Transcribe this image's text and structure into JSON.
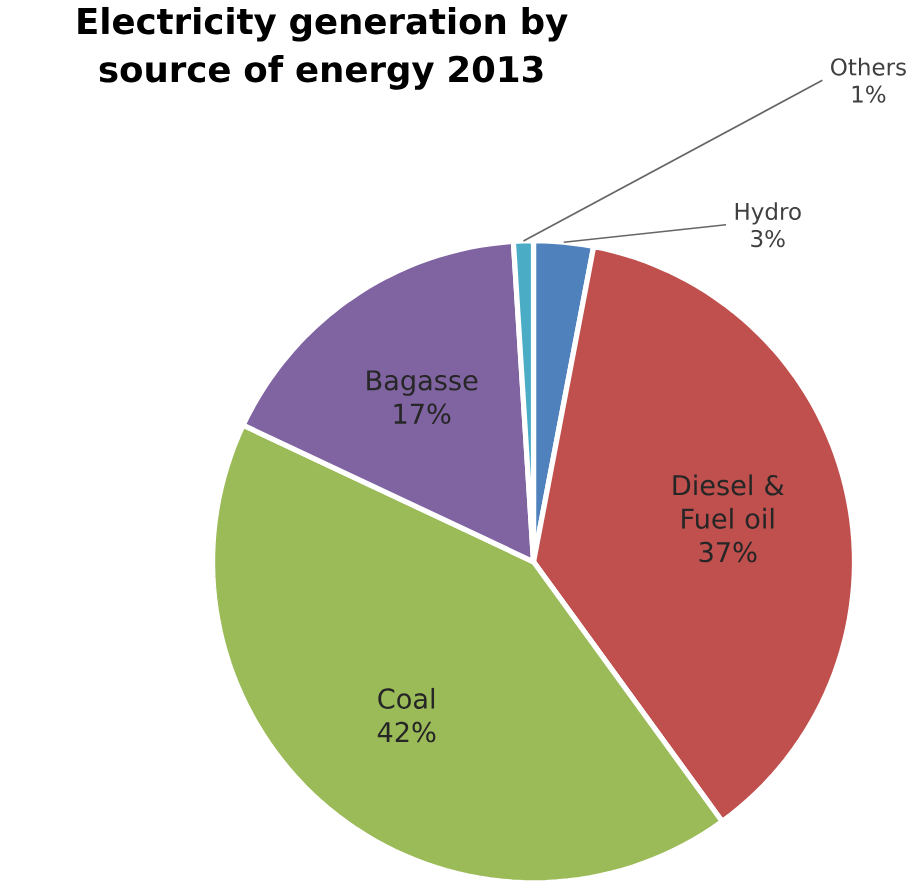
{
  "chart_data": {
    "type": "pie",
    "title": "Electricity generation by source of energy 2013",
    "categories": [
      "Hydro",
      "Diesel & Fuel oil",
      "Coal",
      "Bagasse",
      "Others"
    ],
    "values": [
      3,
      37,
      42,
      17,
      1
    ],
    "colors": [
      "#4f81bd",
      "#c0504d",
      "#9bbb59",
      "#8064a2",
      "#4bacc6"
    ],
    "value_labels": [
      "3%",
      "37%",
      "42%",
      "17%",
      "1%"
    ]
  }
}
